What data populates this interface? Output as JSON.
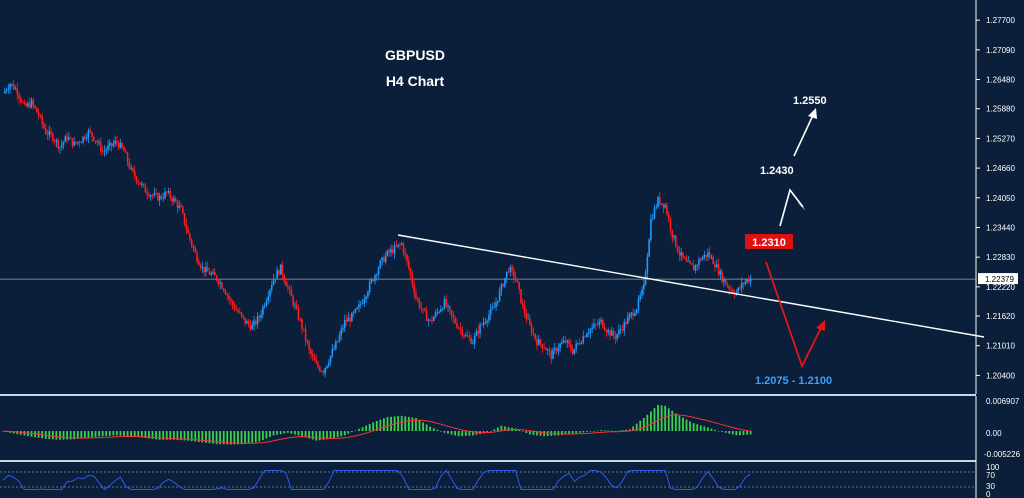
{
  "chart_data": {
    "type": "candlestick",
    "title": "GBPUSD",
    "subtitle": "H4 Chart",
    "y_ticks": [
      "1.27700",
      "1.27090",
      "1.26480",
      "1.25880",
      "1.25270",
      "1.24660",
      "1.24050",
      "1.23440",
      "1.22830",
      "1.22220",
      "1.21620",
      "1.21010",
      "1.20400"
    ],
    "y_range": [
      1.201,
      1.2795
    ],
    "current_price": "1.22379",
    "current_price_value": 1.22379,
    "price_path": [
      [
        0,
        1.262
      ],
      [
        4,
        1.264
      ],
      [
        8,
        1.2625
      ],
      [
        12,
        1.259
      ],
      [
        16,
        1.26
      ],
      [
        20,
        1.2575
      ],
      [
        24,
        1.254
      ],
      [
        28,
        1.253
      ],
      [
        32,
        1.251
      ],
      [
        36,
        1.253
      ],
      [
        40,
        1.2515
      ],
      [
        44,
        1.2525
      ],
      [
        48,
        1.254
      ],
      [
        52,
        1.2525
      ],
      [
        56,
        1.25
      ],
      [
        60,
        1.251
      ],
      [
        64,
        1.252
      ],
      [
        68,
        1.25
      ],
      [
        72,
        1.246
      ],
      [
        76,
        1.244
      ],
      [
        80,
        1.242
      ],
      [
        84,
        1.241
      ],
      [
        88,
        1.2405
      ],
      [
        92,
        1.2415
      ],
      [
        96,
        1.24
      ],
      [
        100,
        1.238
      ],
      [
        104,
        1.233
      ],
      [
        108,
        1.229
      ],
      [
        112,
        1.226
      ],
      [
        116,
        1.225
      ],
      [
        120,
        1.224
      ],
      [
        124,
        1.222
      ],
      [
        128,
        1.219
      ],
      [
        132,
        1.217
      ],
      [
        136,
        1.215
      ],
      [
        140,
        1.214
      ],
      [
        144,
        1.216
      ],
      [
        148,
        1.22
      ],
      [
        152,
        1.224
      ],
      [
        156,
        1.226
      ],
      [
        160,
        1.222
      ],
      [
        164,
        1.218
      ],
      [
        168,
        1.214
      ],
      [
        172,
        1.209
      ],
      [
        176,
        1.206
      ],
      [
        180,
        1.205
      ],
      [
        184,
        1.208
      ],
      [
        188,
        1.211
      ],
      [
        192,
        1.215
      ],
      [
        196,
        1.216
      ],
      [
        200,
        1.218
      ],
      [
        204,
        1.221
      ],
      [
        208,
        1.224
      ],
      [
        212,
        1.227
      ],
      [
        216,
        1.229
      ],
      [
        220,
        1.23
      ],
      [
        224,
        1.231
      ],
      [
        228,
        1.226
      ],
      [
        232,
        1.22
      ],
      [
        236,
        1.217
      ],
      [
        240,
        1.215
      ],
      [
        244,
        1.217
      ],
      [
        248,
        1.219
      ],
      [
        252,
        1.216
      ],
      [
        256,
        1.214
      ],
      [
        260,
        1.212
      ],
      [
        264,
        1.211
      ],
      [
        268,
        1.214
      ],
      [
        272,
        1.216
      ],
      [
        276,
        1.218
      ],
      [
        280,
        1.222
      ],
      [
        284,
        1.226
      ],
      [
        288,
        1.224
      ],
      [
        292,
        1.218
      ],
      [
        296,
        1.214
      ],
      [
        300,
        1.211
      ],
      [
        304,
        1.21
      ],
      [
        308,
        1.208
      ],
      [
        312,
        1.21
      ],
      [
        316,
        1.211
      ],
      [
        320,
        1.209
      ],
      [
        324,
        1.211
      ],
      [
        328,
        1.213
      ],
      [
        332,
        1.214
      ],
      [
        336,
        1.215
      ],
      [
        340,
        1.213
      ],
      [
        344,
        1.212
      ],
      [
        348,
        1.214
      ],
      [
        352,
        1.216
      ],
      [
        356,
        1.218
      ],
      [
        360,
        1.222
      ],
      [
        364,
        1.236
      ],
      [
        368,
        1.24
      ],
      [
        372,
        1.239
      ],
      [
        376,
        1.233
      ],
      [
        380,
        1.229
      ],
      [
        384,
        1.227
      ],
      [
        388,
        1.226
      ],
      [
        392,
        1.228
      ],
      [
        396,
        1.229
      ],
      [
        400,
        1.227
      ],
      [
        404,
        1.224
      ],
      [
        408,
        1.222
      ],
      [
        412,
        1.221
      ],
      [
        416,
        1.223
      ],
      [
        420,
        1.224
      ]
    ],
    "macd_ticks": [
      "0.006907",
      "0.00",
      "-0.005226"
    ],
    "macd_range": [
      -0.0062,
      0.0076
    ],
    "macd_path": [
      [
        0,
        -0.0001
      ],
      [
        8,
        -0.0007
      ],
      [
        16,
        -0.0013
      ],
      [
        24,
        -0.0018
      ],
      [
        32,
        -0.002
      ],
      [
        40,
        -0.0019
      ],
      [
        48,
        -0.0015
      ],
      [
        56,
        -0.0012
      ],
      [
        64,
        -0.001
      ],
      [
        72,
        -0.0012
      ],
      [
        80,
        -0.0016
      ],
      [
        88,
        -0.002
      ],
      [
        96,
        -0.002
      ],
      [
        104,
        -0.0022
      ],
      [
        112,
        -0.0026
      ],
      [
        120,
        -0.003
      ],
      [
        128,
        -0.0031
      ],
      [
        136,
        -0.003
      ],
      [
        144,
        -0.0024
      ],
      [
        152,
        -0.001
      ],
      [
        160,
        -0.0004
      ],
      [
        168,
        -0.0012
      ],
      [
        176,
        -0.0022
      ],
      [
        184,
        -0.0018
      ],
      [
        192,
        -0.001
      ],
      [
        200,
        0.0005
      ],
      [
        208,
        0.002
      ],
      [
        216,
        0.0032
      ],
      [
        224,
        0.0035
      ],
      [
        232,
        0.003
      ],
      [
        240,
        0.001
      ],
      [
        248,
        -0.0004
      ],
      [
        256,
        -0.0012
      ],
      [
        264,
        -0.001
      ],
      [
        272,
        -0.0004
      ],
      [
        280,
        0.0012
      ],
      [
        288,
        0.0006
      ],
      [
        296,
        -0.0008
      ],
      [
        304,
        -0.0012
      ],
      [
        312,
        -0.001
      ],
      [
        320,
        -0.0006
      ],
      [
        328,
        -0.0002
      ],
      [
        336,
        0.0002
      ],
      [
        344,
        0.0
      ],
      [
        352,
        0.0004
      ],
      [
        360,
        0.003
      ],
      [
        368,
        0.006
      ],
      [
        372,
        0.0058
      ],
      [
        380,
        0.0035
      ],
      [
        388,
        0.0018
      ],
      [
        396,
        0.0008
      ],
      [
        404,
        -0.0002
      ],
      [
        412,
        -0.001
      ],
      [
        420,
        -0.0008
      ]
    ],
    "rsi_ticks": [
      "100",
      "70",
      "30",
      "0"
    ],
    "annotations": {
      "target_up_1": "1.2430",
      "target_up_2": "1.2550",
      "resistance_box": "1.2310",
      "support_zone": "1.2075 - 1.2100"
    },
    "colors": {
      "background": "#0b1f3a",
      "bull_candle": "#1e9bff",
      "bear_candle": "#ff1e1e",
      "macd_hist": "#3dd04f",
      "signal_line": "#ff3030",
      "trendline": "#ffffff",
      "support_text": "#3aa0ff",
      "resistance_box": "#e01010",
      "rsi_line": "#3060ff",
      "axis_text": "#ffffff"
    },
    "grid": false
  }
}
